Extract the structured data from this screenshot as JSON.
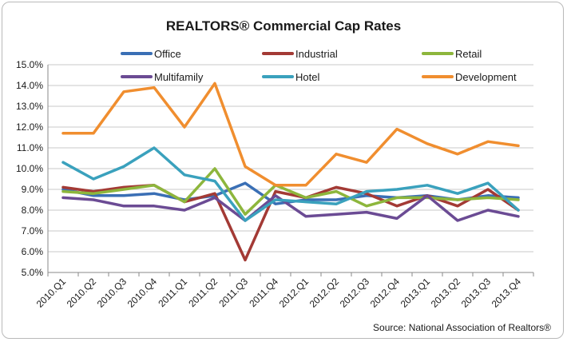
{
  "chart_data": {
    "type": "line",
    "title": "REALTORS® Commercial Cap Rates",
    "source": "Source: National Association of Realtors®",
    "categories": [
      "2010.Q1",
      "2010.Q2",
      "2010.Q3",
      "2010.Q4",
      "2011.Q1",
      "2011.Q2",
      "2011.Q3",
      "2011.Q4",
      "2012.Q1",
      "2012.Q2",
      "2012.Q3",
      "2012.Q4",
      "2013.Q1",
      "2013.Q2",
      "2013.Q3",
      "2013.Q4"
    ],
    "ylim": [
      5.0,
      15.0
    ],
    "yticks": [
      5,
      6,
      7,
      8,
      9,
      10,
      11,
      12,
      13,
      14,
      15
    ],
    "ytick_labels": [
      "5.0%",
      "6.0%",
      "7.0%",
      "8.0%",
      "9.0%",
      "10.0%",
      "11.0%",
      "12.0%",
      "13.0%",
      "14.0%",
      "15.0%"
    ],
    "grid": true,
    "legend_position": "top",
    "series": [
      {
        "name": "Office",
        "color": "#3a6fb5",
        "values": [
          9.0,
          8.7,
          8.7,
          8.8,
          8.5,
          8.7,
          9.3,
          8.3,
          8.5,
          8.5,
          8.7,
          8.6,
          8.7,
          8.5,
          8.7,
          8.6
        ]
      },
      {
        "name": "Industrial",
        "color": "#a33a35",
        "values": [
          9.1,
          8.9,
          9.1,
          9.2,
          8.4,
          8.8,
          5.6,
          8.9,
          8.6,
          9.1,
          8.8,
          8.2,
          8.7,
          8.2,
          9.0,
          8.0
        ]
      },
      {
        "name": "Retail",
        "color": "#8db63c",
        "values": [
          8.9,
          8.8,
          9.0,
          9.2,
          8.4,
          10.0,
          7.8,
          9.2,
          8.6,
          8.9,
          8.2,
          8.6,
          8.6,
          8.5,
          8.6,
          8.5
        ]
      },
      {
        "name": "Multifamily",
        "color": "#6b4b94",
        "values": [
          8.6,
          8.5,
          8.2,
          8.2,
          8.0,
          8.6,
          7.5,
          8.7,
          7.7,
          7.8,
          7.9,
          7.6,
          8.7,
          7.5,
          8.0,
          7.7
        ]
      },
      {
        "name": "Hotel",
        "color": "#3aa1bd",
        "values": [
          10.3,
          9.5,
          10.1,
          11.0,
          9.7,
          9.4,
          7.5,
          8.5,
          8.4,
          8.3,
          8.9,
          9.0,
          9.2,
          8.8,
          9.3,
          8.0
        ]
      },
      {
        "name": "Development",
        "color": "#f08e2f",
        "values": [
          11.7,
          11.7,
          13.7,
          13.9,
          12.0,
          14.1,
          10.1,
          9.2,
          9.2,
          10.7,
          10.3,
          11.9,
          11.2,
          10.7,
          11.3,
          11.1
        ]
      }
    ]
  }
}
